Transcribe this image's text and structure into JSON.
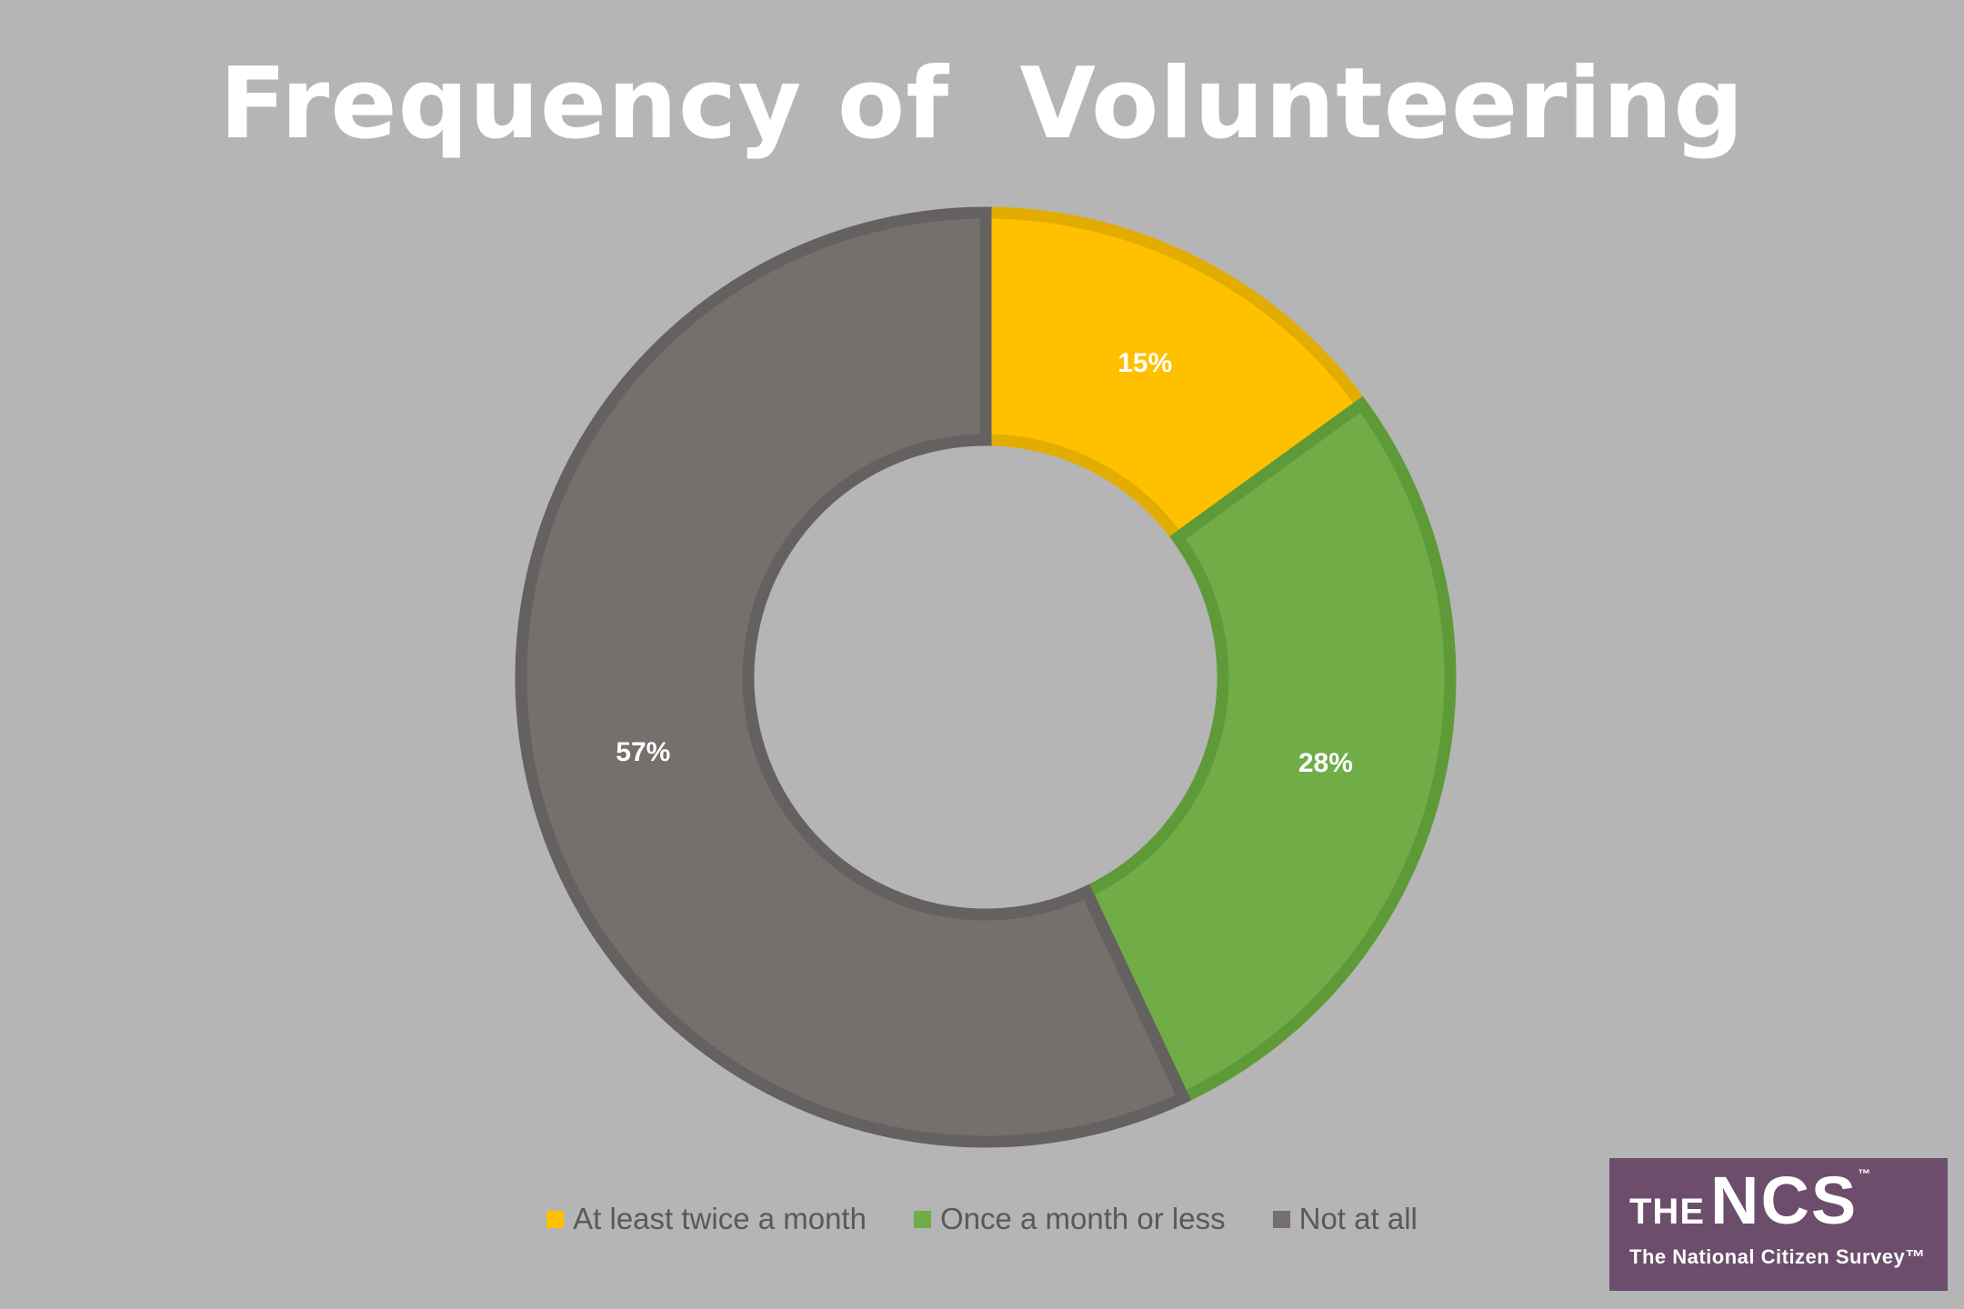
{
  "chart_data": {
    "type": "pie",
    "title": "Frequency of  Volunteering",
    "categories": [
      "At least twice a month",
      "Once a month or less",
      "Not at all"
    ],
    "values": [
      15,
      28,
      57
    ],
    "data_labels": [
      "15%",
      "28%",
      "57%"
    ],
    "colors": [
      "#ffc000",
      "#70ad47",
      "#756f6e"
    ],
    "border_colors": [
      "#e3ac00",
      "#5f9a39",
      "#656161"
    ],
    "legend_position": "bottom"
  },
  "logo": {
    "the": "THE",
    "ncs": "NCS",
    "tm": "™",
    "subtitle": "The National Citizen Survey™"
  }
}
